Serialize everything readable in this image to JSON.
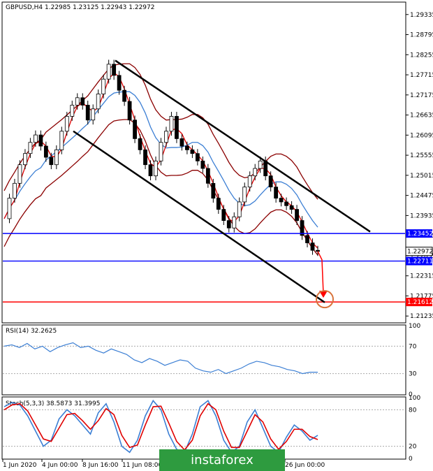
{
  "chart_data": {
    "type": "candlestick",
    "symbol_header": "GBPUSD,H4  1.22985 1.23125 1.22943 1.22972",
    "price_ticks": [
      "1.29335",
      "1.28795",
      "1.28255",
      "1.27715",
      "1.27175",
      "1.26635",
      "1.26095",
      "1.25555",
      "1.25015",
      "1.24475",
      "1.23935",
      "1.23395",
      "1.22855",
      "1.22315",
      "1.21775",
      "1.21235"
    ],
    "ylim": [
      1.2107,
      1.2965
    ],
    "x_labels": [
      "1 Jun 2020",
      "4 Jun 00:00",
      "8 Jun 16:00",
      "11 Jun 08:00",
      "26 Jun 00:00"
    ],
    "levels": [
      {
        "label": "1.23452",
        "value": 1.23452,
        "color": "#0000ff"
      },
      {
        "label": "1.22711",
        "value": 1.22711,
        "color": "#0000ff"
      },
      {
        "label": "1.21612",
        "value": 1.21612,
        "color": "#ff0000"
      }
    ],
    "current_price_label": "1.22972",
    "current_price": 1.22972,
    "close_path": [
      1.2385,
      1.244,
      1.248,
      1.253,
      1.256,
      1.259,
      1.261,
      1.258,
      1.255,
      1.253,
      1.257,
      1.262,
      1.266,
      1.269,
      1.271,
      1.269,
      1.265,
      1.268,
      1.272,
      1.276,
      1.28,
      1.277,
      1.273,
      1.27,
      1.265,
      1.26,
      1.257,
      1.253,
      1.25,
      1.254,
      1.259,
      1.262,
      1.266,
      1.26,
      1.258,
      1.257,
      1.256,
      1.254,
      1.252,
      1.248,
      1.244,
      1.241,
      1.238,
      1.236,
      1.239,
      1.243,
      1.247,
      1.25,
      1.252,
      1.254,
      1.25,
      1.247,
      1.244,
      1.243,
      1.242,
      1.241,
      1.238,
      1.234,
      1.232,
      1.23,
      1.2297
    ],
    "channel_lines": [
      {
        "from": [
          1.281
        ],
        "to": [
          1.235
        ],
        "color": "#000000"
      },
      {
        "from": [
          1.262
        ],
        "to": [
          1.216
        ],
        "color": "#000000"
      }
    ],
    "rsi": {
      "label": "RSI(14) 32.2625",
      "ticks": [
        "100",
        "70",
        "30",
        "0"
      ],
      "values": [
        70,
        72,
        68,
        74,
        66,
        70,
        62,
        68,
        72,
        75,
        68,
        70,
        64,
        60,
        66,
        62,
        58,
        50,
        46,
        52,
        48,
        42,
        46,
        50,
        48,
        38,
        34,
        32,
        36,
        30,
        34,
        38,
        44,
        48,
        46,
        42,
        40,
        36,
        34,
        30,
        32,
        32
      ]
    },
    "stoch": {
      "label": "Stoch(5,3,3) 38.5873 31.3995",
      "ticks": [
        "100",
        "80",
        "20",
        "0"
      ],
      "k_values": [
        85,
        92,
        88,
        70,
        45,
        20,
        30,
        65,
        80,
        70,
        55,
        40,
        75,
        90,
        60,
        20,
        10,
        30,
        70,
        95,
        80,
        40,
        15,
        10,
        40,
        85,
        95,
        70,
        30,
        10,
        20,
        60,
        80,
        50,
        20,
        10,
        35,
        55,
        45,
        30,
        38
      ],
      "d_values": [
        80,
        88,
        90,
        78,
        55,
        32,
        28,
        50,
        72,
        74,
        62,
        48,
        62,
        82,
        72,
        38,
        18,
        22,
        55,
        85,
        86,
        58,
        28,
        14,
        30,
        70,
        90,
        80,
        45,
        18,
        18,
        45,
        72,
        60,
        32,
        15,
        28,
        48,
        48,
        36,
        31
      ]
    }
  },
  "watermark": "instaforex"
}
